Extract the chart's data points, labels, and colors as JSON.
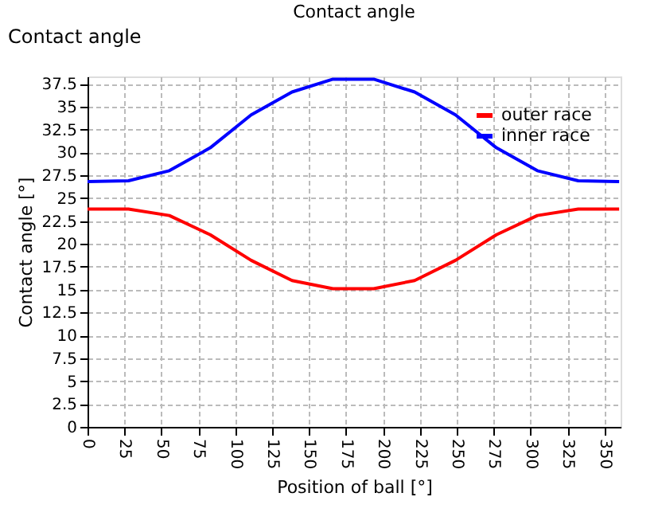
{
  "chart_data": {
    "type": "line",
    "title": "Contact angle",
    "xlabel": "Position of ball [°]",
    "ylabel": "Contact angle [°]",
    "annotations": [
      "Contact angle"
    ],
    "x": [
      0,
      27.7,
      55.4,
      83.1,
      110.8,
      138.5,
      166.2,
      193.8,
      221.5,
      249.2,
      276.9,
      304.6,
      332.3,
      360
    ],
    "series": [
      {
        "name": "outer race",
        "color": "#ff0000",
        "values": [
          23.8,
          23.8,
          23.1,
          21.0,
          18.2,
          16.0,
          15.1,
          15.1,
          16.0,
          18.2,
          21.0,
          23.1,
          23.8,
          23.8
        ]
      },
      {
        "name": "inner race",
        "color": "#0000ff",
        "values": [
          26.8,
          26.9,
          28.0,
          30.5,
          34.1,
          36.6,
          38.0,
          38.0,
          36.6,
          34.1,
          30.5,
          28.0,
          26.9,
          26.8
        ]
      }
    ],
    "xlim": [
      0,
      361
    ],
    "xticks": [
      0,
      25,
      50,
      75,
      100,
      125,
      150,
      175,
      200,
      225,
      250,
      275,
      300,
      325,
      350
    ],
    "ylim": [
      0,
      38.3
    ],
    "yticks": [
      0,
      2.5,
      5,
      7.5,
      10,
      12.5,
      15,
      17.5,
      20,
      22.5,
      25,
      27.5,
      30,
      32.5,
      35,
      37.5
    ],
    "grid": true,
    "legend": "top right",
    "marker": "none",
    "line_style": "solid"
  }
}
